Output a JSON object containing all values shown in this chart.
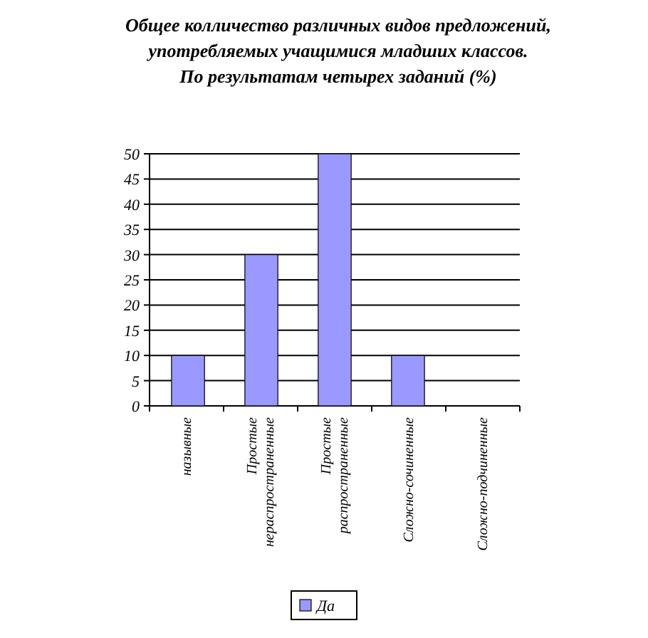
{
  "chart_data": {
    "type": "bar",
    "title": "Общее колличество различных видов предложений,\nупотребляемых учащимися младших классов.\nПо результатам четырех заданий (%)",
    "categories": [
      "назывные",
      "Простые\nнераспространенные",
      "Простые\nраспространенные",
      "Сложно-сочиненные",
      "Сложно-подчиненные"
    ],
    "series": [
      {
        "name": "Да",
        "color": "#9999ff",
        "values": [
          10,
          30,
          50,
          10,
          0
        ]
      }
    ],
    "ylim": [
      0,
      50
    ],
    "yticks": [
      0,
      5,
      10,
      15,
      20,
      25,
      30,
      35,
      40,
      45,
      50
    ],
    "grid": "y",
    "legend": "bottom"
  }
}
